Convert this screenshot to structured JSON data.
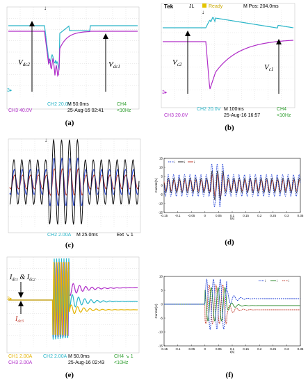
{
  "chart_data": [
    {
      "id": "a",
      "type": "line",
      "caption": "(a)",
      "annotations": [
        "V",
        "dc2",
        "V",
        "dc1"
      ],
      "series": [
        {
          "name": "CH2",
          "color": "#29b5c8",
          "level": 0.2
        },
        {
          "name": "CH3",
          "color": "#b02cc8",
          "level": 0.28
        }
      ],
      "settings": {
        "ch2": "CH2",
        "ch2_value": "20.0V",
        "ch3": "CH3",
        "ch3_value": "40.0V",
        "timebase": "M 50.0ms",
        "date": "25-Aug-16 02:41",
        "ch4": "CH4",
        "ch4_extra": "<10Hz"
      }
    },
    {
      "id": "b",
      "type": "line",
      "caption": "(b)",
      "header": [
        "Tek",
        "JL",
        "Ready",
        "M Pos: 204.0ms"
      ],
      "annotations": [
        "V",
        "c2",
        "V",
        "c1"
      ],
      "series": [
        {
          "name": "CH2",
          "color": "#29b5c8",
          "level": 0.22
        },
        {
          "name": "CH3",
          "color": "#b02cc8",
          "level": 0.35
        }
      ],
      "settings": {
        "ch2": "CH2",
        "ch2_value": "20.0V",
        "ch3": "CH3",
        "ch3_value": "20.0V",
        "timebase": "M 100ms",
        "date": "25-Aug-16 16:57",
        "ch4": "CH4",
        "ch4_extra": "<10Hz"
      }
    },
    {
      "id": "c",
      "type": "line",
      "caption": "(c)",
      "settings": {
        "ch2": "CH2",
        "ch2_value": "2.00A",
        "timebase": "M 25.0ms",
        "ext": "Ext",
        "ext_value": "1"
      }
    },
    {
      "id": "d",
      "type": "line",
      "caption": "(d)",
      "xlabel": "t(s)",
      "ylabel": "Current(A)",
      "xlim": [
        -0.15,
        0.35
      ],
      "ylim": [
        -15,
        15
      ],
      "x_ticks": [
        "-0.15",
        "-0.1",
        "-0.05",
        "0",
        "0.05",
        "0.1",
        "0.15",
        "0.2",
        "0.25",
        "0.3",
        "0.35"
      ],
      "y_ticks": [
        "15",
        "10",
        "5",
        "0",
        "-5",
        "-10",
        "-15"
      ],
      "legend": [
        "i",
        "i",
        "i"
      ],
      "series": [
        {
          "color": "#1f3fd6"
        },
        {
          "color": "#222222"
        },
        {
          "color": "#c0392b"
        }
      ]
    },
    {
      "id": "e",
      "type": "line",
      "caption": "(e)",
      "annotations": [
        "I",
        "dc1",
        "&",
        "I",
        "dc2",
        "I",
        "dc3"
      ],
      "settings": {
        "ch1": "CH1",
        "ch1_value": "2.00A",
        "ch2": "CH2",
        "ch2_value": "2.00A",
        "ch3": "CH3",
        "ch3_value": "2.00A",
        "timebase": "M 50.0ms",
        "date": "25-Aug-16 02:43",
        "ch4": "CH4",
        "ch4_extra": "<10Hz",
        "ch4_value": "1"
      }
    },
    {
      "id": "f",
      "type": "line",
      "caption": "(f)",
      "xlabel": "t(s)",
      "ylabel": "Current(A)",
      "xlim": [
        -0.15,
        0.35
      ],
      "ylim": [
        -15,
        10
      ],
      "x_ticks": [
        "-0.15",
        "-0.1",
        "-0.05",
        "0",
        "0.05",
        "0.1",
        "0.15",
        "0.2",
        "0.25",
        "0.3",
        "0.35"
      ],
      "y_ticks": [
        "10",
        "5",
        "0",
        "-5",
        "-10",
        "-15"
      ],
      "legend": [
        "i",
        "i",
        "i"
      ],
      "series": [
        {
          "color": "#1f3fd6"
        },
        {
          "color": "#2e8b2e"
        },
        {
          "color": "#c0392b"
        }
      ]
    }
  ]
}
